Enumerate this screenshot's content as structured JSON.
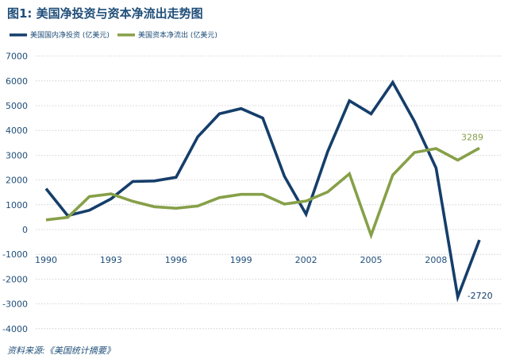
{
  "title": "图1: 美国净投资与资本净流出走势图",
  "source": "资料来源:《美国统计摘要》",
  "colors": {
    "series1": "#153e6a",
    "series2": "#86a048",
    "text": "#1f4e79",
    "grid": "#c8c8c8"
  },
  "chart_data": {
    "type": "line",
    "title": "图1: 美国净投资与资本净流出走势图",
    "x": [
      1990,
      1991,
      1992,
      1993,
      1994,
      1995,
      1996,
      1997,
      1998,
      1999,
      2000,
      2001,
      2002,
      2003,
      2004,
      2005,
      2006,
      2007,
      2008,
      2009,
      2010
    ],
    "x_tick_labels": [
      "1990",
      "1993",
      "1996",
      "1999",
      "2002",
      "2005",
      "2008"
    ],
    "y_ticks": [
      7000,
      6000,
      5000,
      4000,
      3000,
      2000,
      1000,
      0,
      -1000,
      -2000,
      -3000,
      -4000
    ],
    "ylim": [
      -4000,
      7000
    ],
    "grid": "horizontal dotted",
    "legend_position": "top",
    "series": [
      {
        "name": "美国国内净投资 (亿美元)",
        "color": "#153e6a",
        "values": [
          1650,
          560,
          780,
          1240,
          1940,
          1960,
          2110,
          3740,
          4670,
          4880,
          4500,
          2150,
          620,
          3150,
          5200,
          4670,
          5940,
          4370,
          2480,
          -2720,
          -420
        ]
      },
      {
        "name": "美国资本净流出 (亿美元)",
        "color": "#86a048",
        "values": [
          390,
          490,
          1330,
          1440,
          1140,
          920,
          860,
          950,
          1290,
          1420,
          1420,
          1030,
          1150,
          1520,
          2250,
          -230,
          2200,
          3110,
          3270,
          2800,
          3289
        ]
      }
    ],
    "annotations": [
      {
        "text": "3289",
        "series": 1,
        "x": 2010,
        "y": 3289
      },
      {
        "text": "-2720",
        "series": 0,
        "x": 2009,
        "y": -2720
      }
    ]
  }
}
